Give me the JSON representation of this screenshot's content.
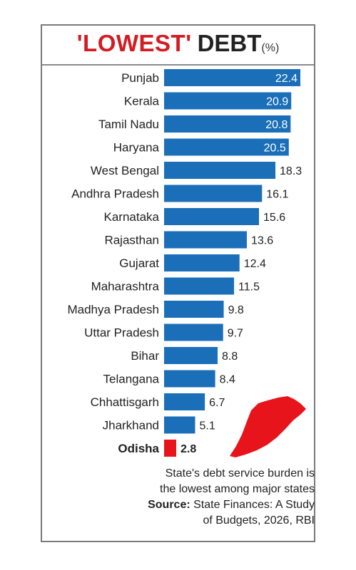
{
  "chart_data": {
    "type": "bar",
    "orientation": "horizontal",
    "title": "'LOWEST' DEBT",
    "title_highlight": "'LOWEST'",
    "title_rest": "DEBT",
    "unit": "(%)",
    "categories": [
      "Punjab",
      "Kerala",
      "Tamil Nadu",
      "Haryana",
      "West Bengal",
      "Andhra Pradesh",
      "Karnataka",
      "Rajasthan",
      "Gujarat",
      "Maharashtra",
      "Madhya Pradesh",
      "Uttar Pradesh",
      "Bihar",
      "Telangana",
      "Chhattisgarh",
      "Jharkhand",
      "Odisha"
    ],
    "values": [
      22.4,
      20.9,
      20.8,
      20.5,
      18.3,
      16.1,
      15.6,
      13.6,
      12.4,
      11.5,
      9.8,
      9.7,
      8.8,
      8.4,
      6.7,
      5.1,
      2.8
    ],
    "value_labels": [
      "22.4",
      "20.9",
      "20.8",
      "20.5",
      "18.3",
      "16.1",
      "15.6",
      "13.6",
      "12.4",
      "11.5",
      "9.8",
      "9.7",
      "8.8",
      "8.4",
      "6.7",
      "5.1",
      "2.8"
    ],
    "highlight_category": "Odisha",
    "bar_color": "#1a6fb8",
    "highlight_color": "#e8141c",
    "xlim": [
      0,
      22.4
    ],
    "grid": false,
    "legend": "none"
  },
  "map_icon": "odisha-map-icon",
  "note": {
    "line1": "State's debt service burden is",
    "line2": "the lowest among major states",
    "source_label": "Source:",
    "source_text": " State Finances: A Study",
    "source_line2": "of Budgets, 2026, RBI"
  }
}
